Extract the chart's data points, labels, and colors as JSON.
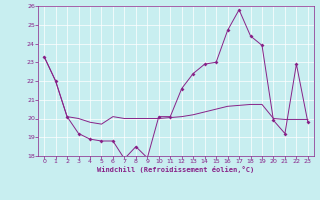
{
  "xlabel": "Windchill (Refroidissement éolien,°C)",
  "ylabel": "",
  "bg_color": "#c8eef0",
  "line_color": "#882288",
  "grid_color": "#ffffff",
  "xlim": [
    -0.5,
    23.5
  ],
  "ylim": [
    18,
    26
  ],
  "yticks": [
    18,
    19,
    20,
    21,
    22,
    23,
    24,
    25,
    26
  ],
  "xticks": [
    0,
    1,
    2,
    3,
    4,
    5,
    6,
    7,
    8,
    9,
    10,
    11,
    12,
    13,
    14,
    15,
    16,
    17,
    18,
    19,
    20,
    21,
    22,
    23
  ],
  "line1_x": [
    0,
    1,
    2,
    3,
    4,
    5,
    6,
    7,
    8,
    9,
    10,
    11,
    12,
    13,
    14,
    15,
    16,
    17,
    18,
    19,
    20,
    21,
    22,
    23
  ],
  "line1_y": [
    23.3,
    22.0,
    20.1,
    19.2,
    18.9,
    18.8,
    18.8,
    17.85,
    18.5,
    17.9,
    20.1,
    20.1,
    21.6,
    22.4,
    22.9,
    23.0,
    24.7,
    25.8,
    24.4,
    23.9,
    19.9,
    19.2,
    22.9,
    19.8
  ],
  "line2_x": [
    0,
    1,
    2,
    3,
    4,
    5,
    6,
    7,
    8,
    9,
    10,
    11,
    12,
    13,
    14,
    15,
    16,
    17,
    18,
    19,
    20,
    21,
    22,
    23
  ],
  "line2_y": [
    23.3,
    22.0,
    20.1,
    20.0,
    19.8,
    19.7,
    20.1,
    20.0,
    20.0,
    20.0,
    20.0,
    20.05,
    20.1,
    20.2,
    20.35,
    20.5,
    20.65,
    20.7,
    20.75,
    20.75,
    20.0,
    19.95,
    19.95,
    19.95
  ]
}
